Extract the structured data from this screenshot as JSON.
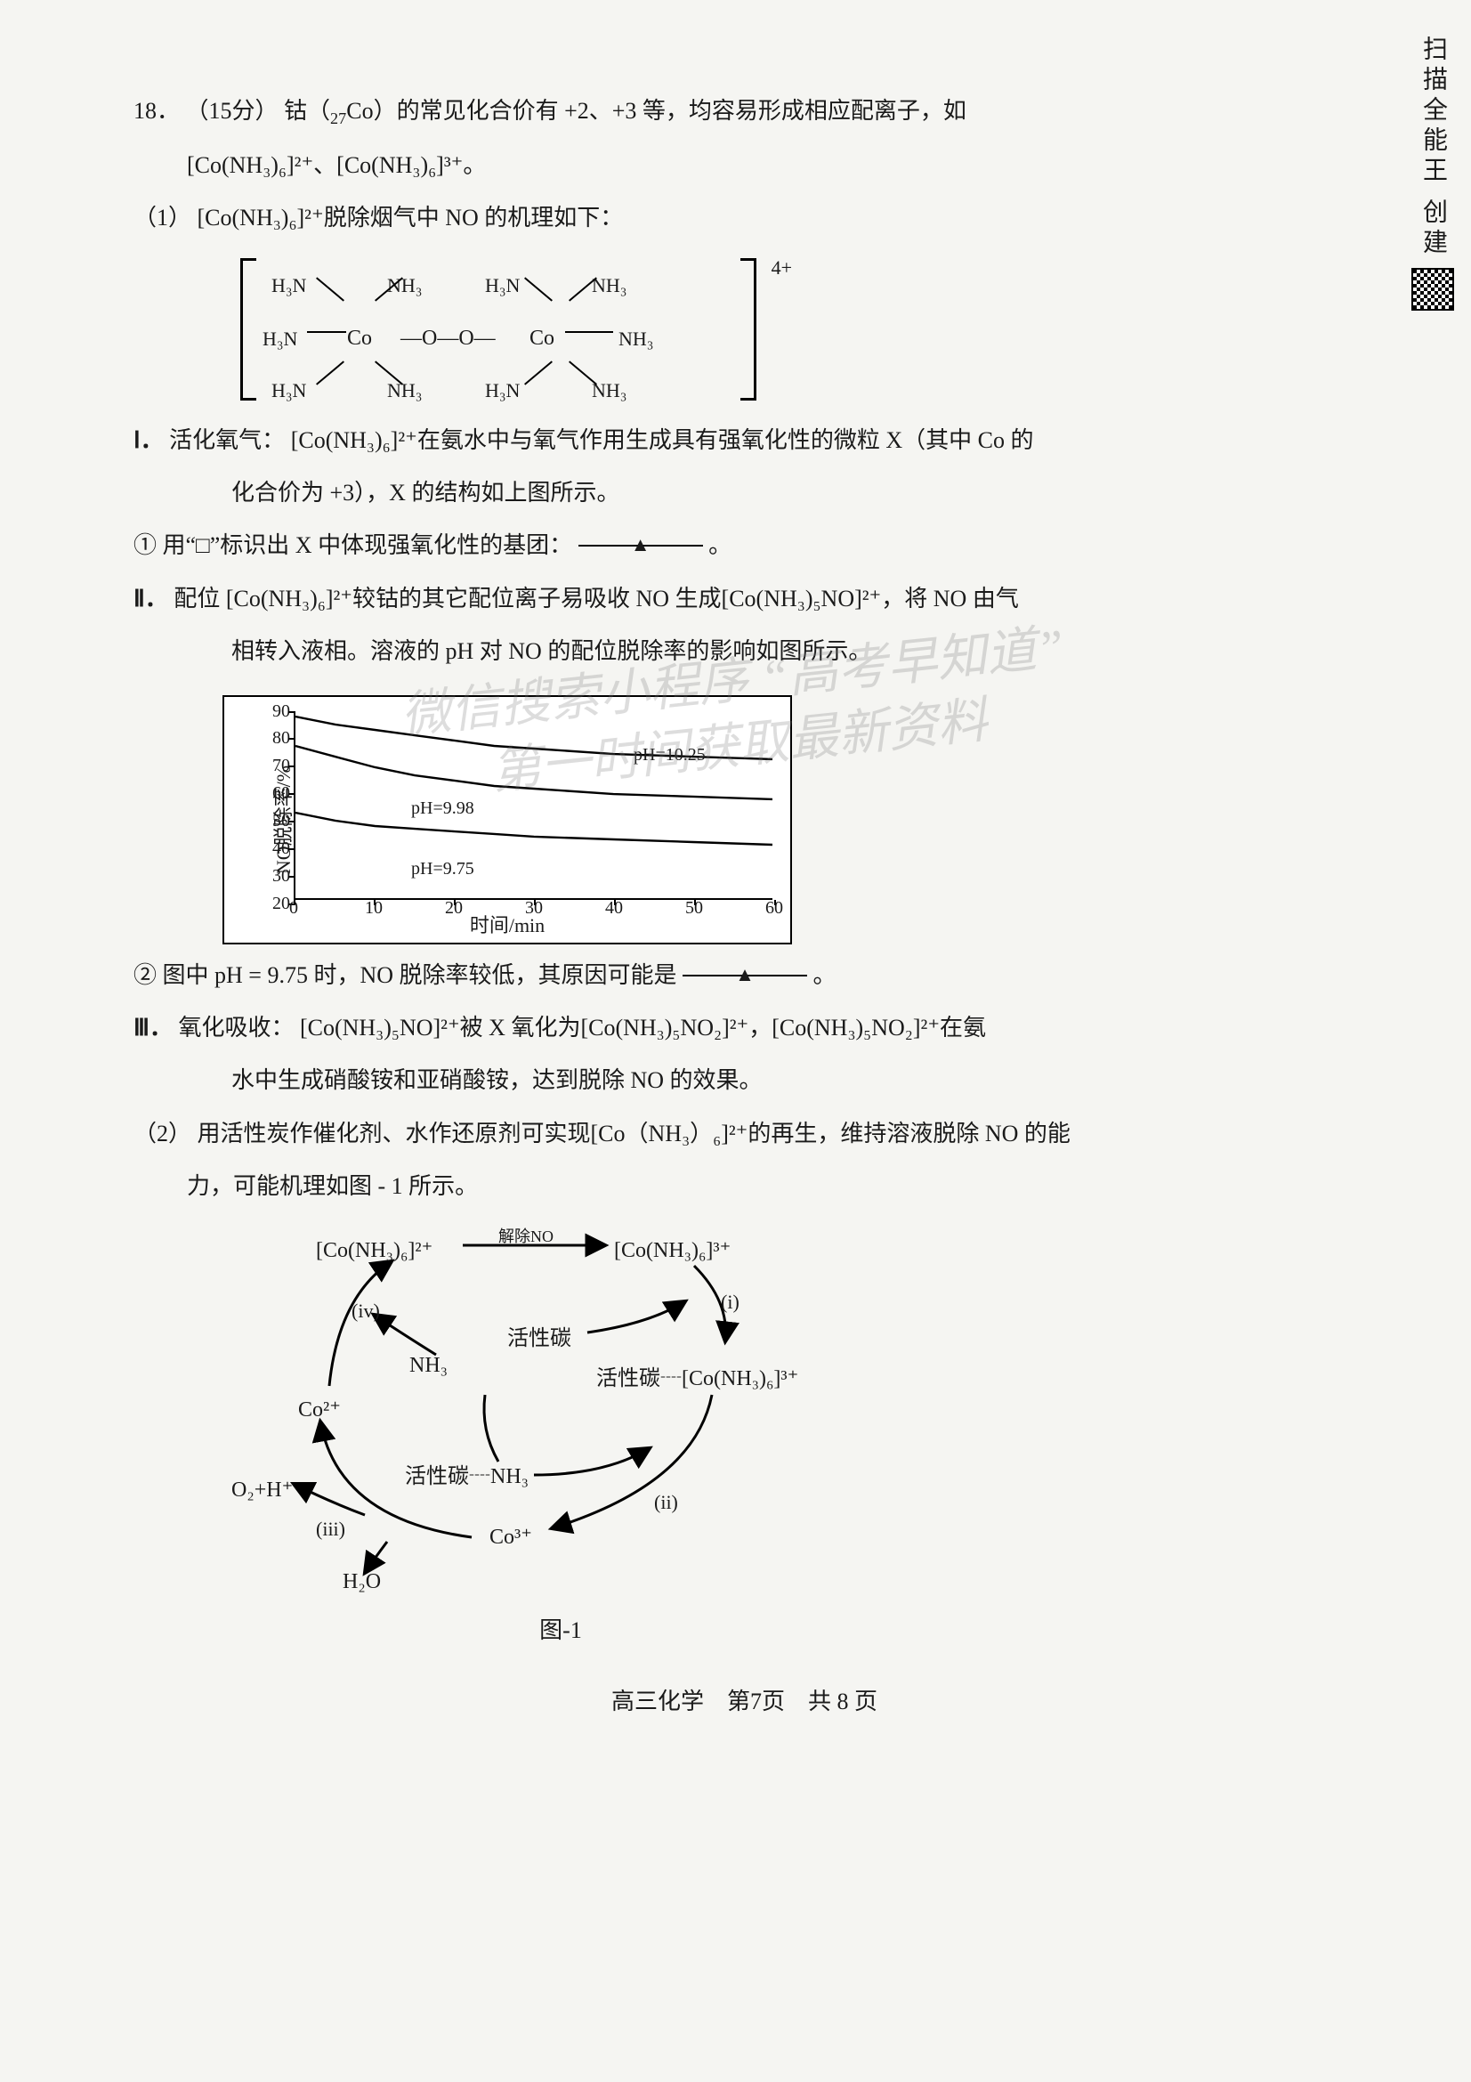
{
  "colors": {
    "page_bg": "#f5f5f2",
    "text": "#1a1a1a",
    "line": "#000000",
    "watermark": "rgba(120,120,120,0.25)",
    "chart_bg": "#ffffff"
  },
  "font": {
    "body_pt": 26,
    "chart_tick_pt": 20,
    "chart_label_pt": 22
  },
  "side_badge": {
    "text": "扫描全能王  创建"
  },
  "question": {
    "number": "18．",
    "points": "（15分）",
    "intro_a": "钴（",
    "intro_sub": "27",
    "intro_b": "Co）的常见化合价有 +2、+3 等，均容易形成相应配离子，如",
    "line2": "[Co(NH₃)₆]²⁺、[Co(NH₃)₆]³⁺。"
  },
  "p1": {
    "label": "（1）",
    "text": "[Co(NH₃)₆]²⁺脱除烟气中 NO 的机理如下："
  },
  "complex": {
    "charge": "4+",
    "ligands": [
      "H₃N",
      "NH₃",
      "H₃N",
      "NH₃",
      "H₃N",
      "NH₃",
      "H₃N",
      "NH₃"
    ],
    "center": "Co",
    "bridge": "O—O"
  },
  "I": {
    "label": "Ⅰ．",
    "title": "活化氧气：",
    "line1": "[Co(NH₃)₆]²⁺在氨水中与氧气作用生成具有强氧化性的微粒 X（其中 Co 的",
    "line2": "化合价为 +3），X 的结构如上图所示。"
  },
  "q1": {
    "label": "①",
    "text_a": "用“□”标识出 X 中体现强氧化性的基团：",
    "blank_mark": "▲",
    "end": "。"
  },
  "II": {
    "label": "Ⅱ．",
    "title": "配位",
    "line1": "[Co(NH₃)₆]²⁺较钴的其它配位离子易吸收 NO 生成[Co(NH₃)₅NO]²⁺，将 NO 由气",
    "line2": "相转入液相。溶液的 pH 对 NO 的配位脱除率的影响如图所示。"
  },
  "chart": {
    "type": "line",
    "ylabel": "NO脱除率/%",
    "xlabel": "时间/min",
    "xlim": [
      0,
      60
    ],
    "ylim": [
      20,
      90
    ],
    "xticks": [
      0,
      10,
      20,
      30,
      40,
      50,
      60
    ],
    "yticks": [
      20,
      30,
      40,
      50,
      60,
      70,
      80,
      90
    ],
    "grid": false,
    "line_color": "#000000",
    "line_width": 2.5,
    "background_color": "#ffffff",
    "series": [
      {
        "name": "pH=10.25",
        "label_xy": [
          380,
          30
        ],
        "points": [
          [
            0,
            88
          ],
          [
            5,
            85
          ],
          [
            10,
            83
          ],
          [
            15,
            81
          ],
          [
            20,
            79
          ],
          [
            25,
            77
          ],
          [
            30,
            76
          ],
          [
            40,
            74
          ],
          [
            50,
            73
          ],
          [
            60,
            72
          ]
        ]
      },
      {
        "name": "pH=9.98",
        "label_xy": [
          130,
          90
        ],
        "points": [
          [
            0,
            77
          ],
          [
            5,
            73
          ],
          [
            10,
            69
          ],
          [
            15,
            66
          ],
          [
            20,
            64
          ],
          [
            25,
            62
          ],
          [
            30,
            61
          ],
          [
            40,
            59
          ],
          [
            50,
            58
          ],
          [
            60,
            57
          ]
        ]
      },
      {
        "name": "pH=9.75",
        "label_xy": [
          130,
          158
        ],
        "points": [
          [
            0,
            52
          ],
          [
            5,
            49
          ],
          [
            10,
            47
          ],
          [
            15,
            46
          ],
          [
            20,
            45
          ],
          [
            25,
            44
          ],
          [
            30,
            43
          ],
          [
            40,
            42
          ],
          [
            50,
            41
          ],
          [
            60,
            40
          ]
        ]
      }
    ]
  },
  "q2": {
    "label": "②",
    "text_a": "图中 pH = 9.75 时，NO 脱除率较低，其原因可能是",
    "blank_mark": "▲",
    "end": "。"
  },
  "III": {
    "label": "Ⅲ．",
    "title": "氧化吸收：",
    "line1": "[Co(NH₃)₅NO]²⁺被 X 氧化为[Co(NH₃)₅NO₂]²⁺，[Co(NH₃)₅NO₂]²⁺在氨",
    "line2": "水中生成硝酸铵和亚硝酸铵，达到脱除 NO 的效果。"
  },
  "p2": {
    "label": "（2）",
    "line1": "用活性炭作催化剂、水作还原剂可实现[Co（NH₃）₆]²⁺的再生，维持溶液脱除 NO 的能",
    "line2": "力，可能机理如图 - 1 所示。"
  },
  "cycle": {
    "caption": "图-1",
    "top_arrow_label": "解除NO",
    "nodes": {
      "A": "[Co(NH₃)₆]²⁺",
      "B": "[Co(NH₃)₆]³⁺",
      "C": "活性碳┈[Co(NH₃)₆]³⁺",
      "C_left": "活性碳",
      "D": "Co³⁺",
      "E": "活性碳┈NH₃",
      "F": "Co²⁺",
      "G": "NH₃",
      "H": "O₂+H⁺",
      "I": "H₂O"
    },
    "steps": {
      "i": "(i)",
      "ii": "(ii)",
      "iii": "(iii)",
      "iv": "(iv)"
    }
  },
  "watermark": {
    "line1": "微信搜索小程序  “高考早知道”",
    "line2": "第一时间获取最新资料"
  },
  "footer": {
    "text": "高三化学　第7页　共 8 页"
  }
}
